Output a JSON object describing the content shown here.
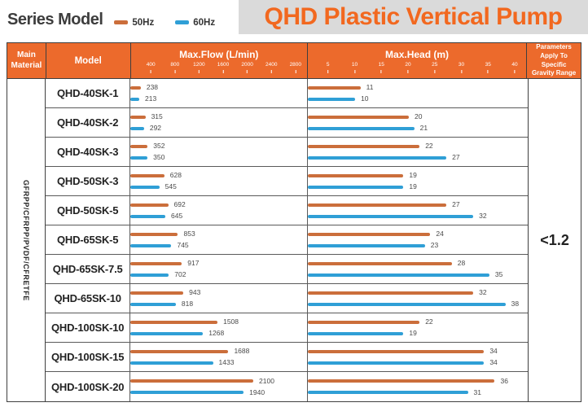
{
  "header": {
    "series_title": "Series Model"
  },
  "table": {
    "headers": {
      "material": "Main Material",
      "model": "Model",
      "params": "Parameters Apply To Specific Gravity Range"
    },
    "material_text": "GFRPP/CFRPP/PVDF/CFRETFE",
    "gravity_value": "<1.2"
  },
  "colors": {
    "header_orange": "#ec6a2c",
    "title_orange": "#f2681f",
    "banner_gray": "#dadada",
    "bar_50hz": "#cb6e3b",
    "bar_60hz": "#2f9fd6"
  },
  "chart_data": {
    "type": "bar",
    "title": "QHD Plastic Vertical Pump",
    "legend": [
      {
        "label": "50Hz",
        "color": "#cb6e3b"
      },
      {
        "label": "60Hz",
        "color": "#2f9fd6"
      }
    ],
    "axes": {
      "flow": {
        "label": "Max.Flow (L/min)",
        "ticks": [
          400,
          800,
          1200,
          1600,
          2000,
          2400,
          2800
        ],
        "range": [
          0,
          2950
        ],
        "pct_per_unit": 0.0342,
        "offset_pct": 2.29
      },
      "head": {
        "label": "Max.Head (m)",
        "ticks": [
          5,
          10,
          15,
          20,
          25,
          30,
          35,
          40
        ],
        "range": [
          0,
          41
        ],
        "pct_per_unit": 2.442,
        "offset_pct": 2.97
      }
    },
    "rows": [
      {
        "model": "QHD-40SK-1",
        "flow_50hz": 238,
        "flow_60hz": 213,
        "head_50hz": 11,
        "head_60hz": 10
      },
      {
        "model": "QHD-40SK-2",
        "flow_50hz": 315,
        "flow_60hz": 292,
        "head_50hz": 20,
        "head_60hz": 21
      },
      {
        "model": "QHD-40SK-3",
        "flow_50hz": 352,
        "flow_60hz": 350,
        "head_50hz": 22,
        "head_60hz": 27
      },
      {
        "model": "QHD-50SK-3",
        "flow_50hz": 628,
        "flow_60hz": 545,
        "head_50hz": 19,
        "head_60hz": 19
      },
      {
        "model": "QHD-50SK-5",
        "flow_50hz": 692,
        "flow_60hz": 645,
        "head_50hz": 27,
        "head_60hz": 32
      },
      {
        "model": "QHD-65SK-5",
        "flow_50hz": 853,
        "flow_60hz": 745,
        "head_50hz": 24,
        "head_60hz": 23
      },
      {
        "model": "QHD-65SK-7.5",
        "flow_50hz": 917,
        "flow_60hz": 702,
        "head_50hz": 28,
        "head_60hz": 35
      },
      {
        "model": "QHD-65SK-10",
        "flow_50hz": 943,
        "flow_60hz": 818,
        "head_50hz": 32,
        "head_60hz": 38
      },
      {
        "model": "QHD-100SK-10",
        "flow_50hz": 1508,
        "flow_60hz": 1268,
        "head_50hz": 22,
        "head_60hz": 19
      },
      {
        "model": "QHD-100SK-15",
        "flow_50hz": 1688,
        "flow_60hz": 1433,
        "head_50hz": 34,
        "head_60hz": 34
      },
      {
        "model": "QHD-100SK-20",
        "flow_50hz": 2100,
        "flow_60hz": 1940,
        "head_50hz": 36,
        "head_60hz": 31
      }
    ]
  }
}
